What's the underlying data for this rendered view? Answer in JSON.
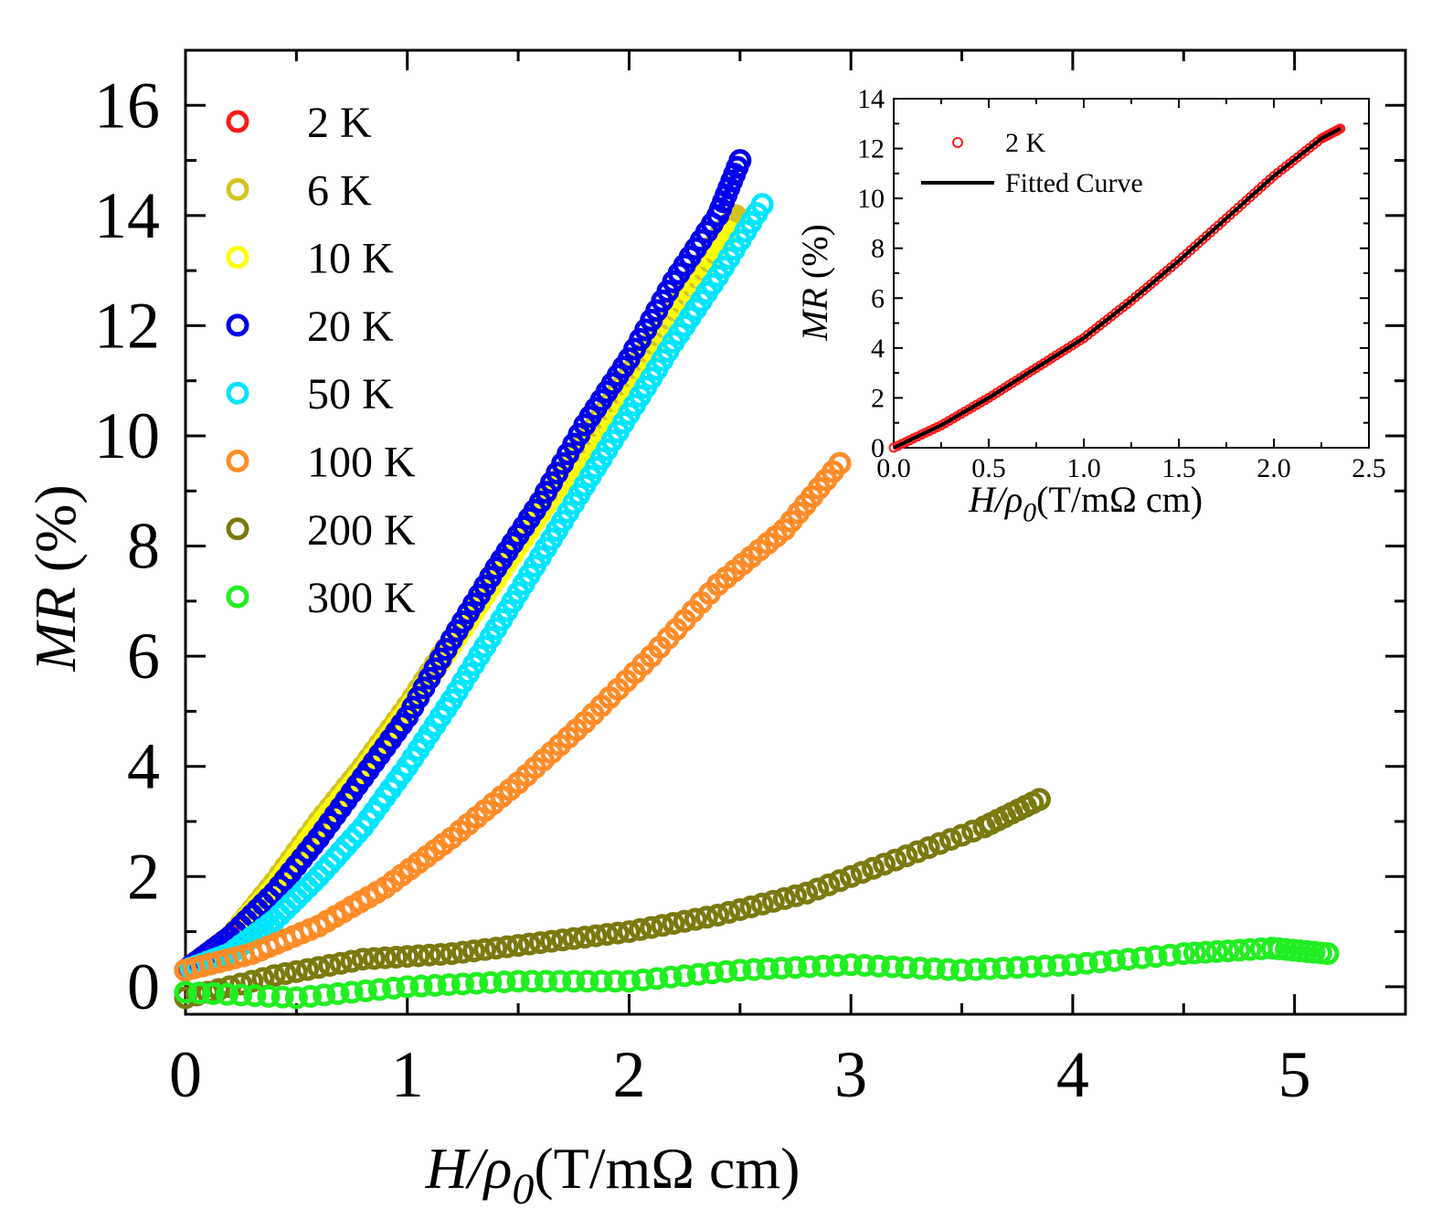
{
  "chart_data": [
    {
      "type": "scatter",
      "xlim": [
        0,
        5.5
      ],
      "ylim": [
        -0.5,
        17
      ],
      "xticks": [
        0,
        1,
        2,
        3,
        4,
        5
      ],
      "yticks": [
        0,
        2,
        4,
        6,
        8,
        10,
        12,
        14,
        16
      ],
      "xlabel": {
        "italic": "H/ρ",
        "sub": "0",
        "rest": "(T/mΩ cm)"
      },
      "ylabel": {
        "italic": "MR",
        "rest": "(%)"
      },
      "legend_position": "top-left",
      "series": [
        {
          "name": "2 K",
          "color": "#ff1a1a",
          "x": [
            0.0,
            0.1,
            0.2,
            0.3,
            0.4,
            0.5,
            0.6,
            0.7
          ],
          "y": [
            0.3,
            0.6,
            0.9,
            1.3,
            1.8,
            2.3,
            2.9,
            3.4
          ]
        },
        {
          "name": "6 K",
          "color": "#d4c41e",
          "x": [
            0.0,
            0.2,
            0.4,
            0.6,
            0.8,
            1.0,
            1.2,
            1.4,
            1.6,
            1.8,
            2.0,
            2.2,
            2.4,
            2.48
          ],
          "y": [
            0.3,
            0.9,
            1.9,
            3.0,
            4.0,
            5.1,
            6.3,
            7.5,
            8.7,
            9.9,
            11.1,
            12.3,
            13.6,
            14.0
          ]
        },
        {
          "name": "10 K",
          "color": "#ffff00",
          "x": [
            0.0,
            0.2,
            0.4,
            0.6,
            0.8,
            1.0,
            1.2,
            1.4,
            1.6,
            1.8,
            2.0,
            2.2,
            2.4,
            2.45
          ],
          "y": [
            0.3,
            0.9,
            1.8,
            2.9,
            3.9,
            5.0,
            6.2,
            7.4,
            8.6,
            9.8,
            11.0,
            12.2,
            13.4,
            13.7
          ]
        },
        {
          "name": "20 K",
          "color": "#0000ee",
          "x": [
            0.0,
            0.2,
            0.4,
            0.6,
            0.8,
            1.0,
            1.2,
            1.4,
            1.6,
            1.8,
            2.0,
            2.2,
            2.4,
            2.5
          ],
          "y": [
            0.3,
            0.9,
            1.7,
            2.7,
            3.8,
            4.9,
            6.3,
            7.6,
            8.8,
            10.2,
            11.4,
            12.8,
            14.0,
            15.0
          ]
        },
        {
          "name": "50 K",
          "color": "#00e5ff",
          "x": [
            0.0,
            0.2,
            0.4,
            0.6,
            0.8,
            1.0,
            1.2,
            1.4,
            1.6,
            1.8,
            2.0,
            2.2,
            2.4,
            2.6
          ],
          "y": [
            0.3,
            0.6,
            1.2,
            2.0,
            2.9,
            4.0,
            5.2,
            6.5,
            7.8,
            9.1,
            10.4,
            11.7,
            12.9,
            14.2
          ]
        },
        {
          "name": "100 K",
          "color": "#ff8c28",
          "x": [
            0.0,
            0.3,
            0.6,
            0.9,
            1.2,
            1.5,
            1.8,
            2.1,
            2.4,
            2.7,
            2.95
          ],
          "y": [
            0.3,
            0.6,
            1.1,
            1.8,
            2.7,
            3.7,
            4.8,
            6.0,
            7.3,
            8.3,
            9.5
          ]
        },
        {
          "name": "200 K",
          "color": "#7a7a10",
          "x": [
            0.0,
            0.4,
            0.8,
            1.2,
            1.6,
            2.0,
            2.4,
            2.8,
            3.2,
            3.6,
            3.85
          ],
          "y": [
            -0.2,
            0.2,
            0.5,
            0.6,
            0.8,
            1.0,
            1.3,
            1.7,
            2.3,
            2.9,
            3.4
          ]
        },
        {
          "name": "300 K",
          "color": "#22ee22",
          "x": [
            0.0,
            0.5,
            1.0,
            1.5,
            2.0,
            2.5,
            3.0,
            3.5,
            4.0,
            4.5,
            4.9,
            5.15
          ],
          "y": [
            -0.1,
            -0.2,
            0.0,
            0.1,
            0.1,
            0.3,
            0.4,
            0.3,
            0.4,
            0.6,
            0.7,
            0.6
          ]
        }
      ]
    },
    {
      "type": "scatter",
      "xlim": [
        0.0,
        2.5
      ],
      "ylim": [
        0,
        14
      ],
      "xticks": [
        0.0,
        0.5,
        1.0,
        1.5,
        2.0,
        2.5
      ],
      "yticks": [
        0,
        2,
        4,
        6,
        8,
        10,
        12,
        14
      ],
      "xtick_labels": [
        "0.0",
        "0.5",
        "1.0",
        "1.5",
        "2.0",
        "2.5"
      ],
      "xlabel": {
        "italic": "H/ρ",
        "sub": "0",
        "rest": "(T/mΩ cm)"
      },
      "ylabel": {
        "italic": "MR",
        "rest": "(%)"
      },
      "legend_position": "top-left",
      "series": [
        {
          "name": "2 K",
          "color": "#ff1a1a",
          "kind": "points",
          "x": [
            0.0,
            0.25,
            0.5,
            0.75,
            1.0,
            1.25,
            1.5,
            1.75,
            2.0,
            2.25,
            2.35
          ],
          "y": [
            0.0,
            0.9,
            2.0,
            3.2,
            4.4,
            5.9,
            7.5,
            9.2,
            10.9,
            12.4,
            12.8
          ]
        },
        {
          "name": "Fitted Curve",
          "color": "#000000",
          "kind": "line",
          "x": [
            0.0,
            0.25,
            0.5,
            0.75,
            1.0,
            1.25,
            1.5,
            1.75,
            2.0,
            2.25,
            2.35
          ],
          "y": [
            0.0,
            0.9,
            2.0,
            3.2,
            4.4,
            5.9,
            7.5,
            9.2,
            10.9,
            12.4,
            12.8
          ]
        }
      ]
    }
  ]
}
